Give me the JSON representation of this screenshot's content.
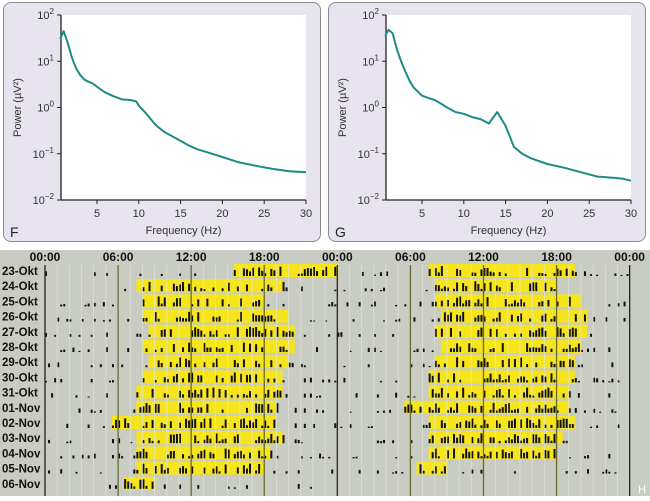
{
  "chart_data": [
    {
      "type": "line",
      "panel_label": "F",
      "xlabel": "Frequency (Hz)",
      "ylabel": "Power (µV²)",
      "yscale": "log",
      "xlim": [
        0.6,
        30
      ],
      "ylim": [
        0.01,
        100
      ],
      "xticks": [
        "5",
        "10",
        "15",
        "20",
        "25",
        "30"
      ],
      "yticks": [
        {
          "base": "10",
          "exp": "2"
        },
        {
          "base": "10",
          "exp": "1"
        },
        {
          "base": "10",
          "exp": "0"
        },
        {
          "base": "10",
          "exp": "−1"
        },
        {
          "base": "10",
          "exp": "−2"
        }
      ],
      "line_color": "#1f8a86",
      "x": [
        0.6,
        1,
        1.5,
        2,
        2.5,
        3,
        3.5,
        4,
        4.5,
        5,
        6,
        7,
        8,
        9,
        9.7,
        10,
        11,
        12,
        13,
        14,
        15,
        16,
        17,
        18,
        20,
        22,
        24,
        26,
        28,
        30
      ],
      "y": [
        30,
        45,
        25,
        12,
        7,
        5,
        4,
        3.6,
        3.3,
        2.8,
        2.1,
        1.75,
        1.5,
        1.45,
        1.35,
        1.1,
        0.7,
        0.42,
        0.3,
        0.24,
        0.19,
        0.15,
        0.125,
        0.11,
        0.085,
        0.065,
        0.055,
        0.047,
        0.042,
        0.04
      ]
    },
    {
      "type": "line",
      "panel_label": "G",
      "xlabel": "Frequency (Hz)",
      "ylabel": "Power (µV²)",
      "yscale": "log",
      "xlim": [
        0.6,
        30
      ],
      "ylim": [
        0.01,
        100
      ],
      "xticks": [
        "5",
        "10",
        "15",
        "20",
        "25",
        "30"
      ],
      "yticks": [
        {
          "base": "10",
          "exp": "2"
        },
        {
          "base": "10",
          "exp": "1"
        },
        {
          "base": "10",
          "exp": "0"
        },
        {
          "base": "10",
          "exp": "−1"
        },
        {
          "base": "10",
          "exp": "−2"
        }
      ],
      "line_color": "#1f8a86",
      "x": [
        0.6,
        1,
        1.5,
        2,
        2.5,
        3,
        3.5,
        4,
        5,
        6,
        6.5,
        7,
        8,
        9,
        10,
        11,
        12,
        13,
        14,
        15,
        16,
        17,
        18,
        20,
        22,
        24,
        26,
        28,
        29,
        30
      ],
      "y": [
        35,
        48,
        40,
        18,
        10,
        6,
        3.8,
        2.7,
        1.8,
        1.55,
        1.45,
        1.3,
        1.0,
        0.8,
        0.73,
        0.62,
        0.56,
        0.45,
        0.8,
        0.4,
        0.14,
        0.1,
        0.08,
        0.06,
        0.05,
        0.04,
        0.032,
        0.03,
        0.029,
        0.026
      ]
    },
    {
      "type": "actogram",
      "panel_label": "H",
      "time_labels": [
        "00:00",
        "06:00",
        "12:00",
        "18:00",
        "00:00",
        "06:00",
        "12:00",
        "18:00",
        "00:00"
      ],
      "rows": [
        "23-Okt",
        "24-Okt",
        "25-Okt",
        "26-Okt",
        "27-Okt",
        "28-Okt",
        "29-Okt",
        "30-Okt",
        "31-Okt",
        "01-Nov",
        "02-Nov",
        "03-Nov",
        "04-Nov",
        "05-Nov",
        "06-Nov"
      ],
      "light_periods_hours": [
        [
          15.5,
          24
        ],
        [
          7.5,
          19.5
        ],
        [
          8,
          18
        ],
        [
          8,
          20
        ],
        [
          8.5,
          20.5
        ],
        [
          8,
          20.5
        ],
        [
          8.5,
          20
        ],
        [
          8,
          19.5
        ],
        [
          7.5,
          19.5
        ],
        [
          7.5,
          19
        ],
        [
          5.5,
          19
        ],
        [
          7.5,
          19.5
        ],
        [
          7.5,
          18.5
        ],
        [
          7.5,
          18
        ],
        [
          6.5,
          9
        ]
      ],
      "light_color": "#f7e51c",
      "activity_color": "#111111",
      "background_color": "#c9ccc2"
    }
  ]
}
